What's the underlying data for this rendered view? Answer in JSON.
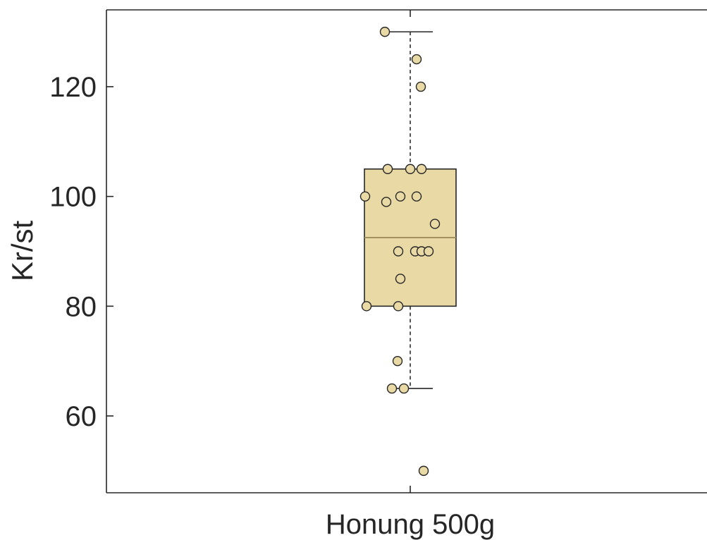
{
  "chart_data": {
    "type": "box",
    "title": "",
    "xlabel": "",
    "ylabel": "Kr/st",
    "categories": [
      "Honung 500g"
    ],
    "ylim": [
      46,
      134
    ],
    "yticks": [
      60,
      80,
      100,
      120
    ],
    "grid": false,
    "box_color": "#e8d9a5",
    "box_edge_color": "#262626",
    "median_color": "#9e8d5a",
    "point_color": "#e8d9a5",
    "point_edge_color": "#262626",
    "axis_color": "#262626",
    "box": {
      "q1": 80,
      "median": 92.5,
      "q3": 105,
      "whisker_low": 65,
      "whisker_high": 130
    },
    "points": [
      130,
      125,
      120,
      105,
      105,
      105,
      100,
      100,
      100,
      99,
      95,
      90,
      90,
      90,
      90,
      85,
      80,
      80,
      70,
      65,
      65,
      50
    ]
  }
}
